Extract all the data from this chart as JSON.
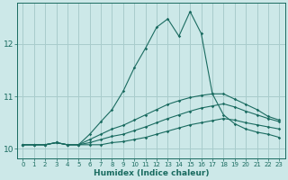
{
  "xlabel": "Humidex (Indice chaleur)",
  "bg_color": "#cce8e8",
  "grid_color": "#a8cccc",
  "line_color": "#1a6b60",
  "xlim": [
    -0.5,
    23.5
  ],
  "ylim": [
    9.82,
    12.78
  ],
  "yticks": [
    10,
    11,
    12
  ],
  "xticks": [
    0,
    1,
    2,
    3,
    4,
    5,
    6,
    7,
    8,
    9,
    10,
    11,
    12,
    13,
    14,
    15,
    16,
    17,
    18,
    19,
    20,
    21,
    22,
    23
  ],
  "series": [
    [
      10.08,
      10.08,
      10.08,
      10.12,
      10.08,
      10.08,
      10.08,
      10.08,
      10.12,
      10.14,
      10.18,
      10.22,
      10.28,
      10.34,
      10.4,
      10.46,
      10.5,
      10.54,
      10.58,
      10.55,
      10.5,
      10.46,
      10.42,
      10.38
    ],
    [
      10.08,
      10.08,
      10.08,
      10.12,
      10.08,
      10.08,
      10.12,
      10.18,
      10.24,
      10.28,
      10.35,
      10.42,
      10.5,
      10.58,
      10.65,
      10.72,
      10.78,
      10.82,
      10.86,
      10.8,
      10.72,
      10.65,
      10.58,
      10.52
    ],
    [
      10.08,
      10.08,
      10.08,
      10.12,
      10.08,
      10.08,
      10.18,
      10.28,
      10.38,
      10.45,
      10.55,
      10.65,
      10.75,
      10.85,
      10.92,
      10.98,
      11.02,
      11.05,
      11.05,
      10.95,
      10.85,
      10.75,
      10.62,
      10.55
    ],
    [
      10.08,
      10.08,
      10.08,
      10.12,
      10.08,
      10.08,
      10.28,
      10.52,
      10.75,
      11.1,
      11.55,
      11.92,
      12.32,
      12.48,
      12.15,
      12.62,
      12.2,
      11.05,
      10.65,
      10.48,
      10.38,
      10.32,
      10.28,
      10.22
    ]
  ]
}
